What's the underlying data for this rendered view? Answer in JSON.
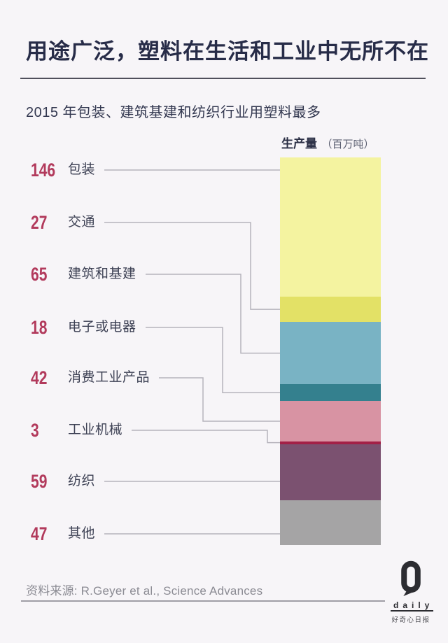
{
  "title": "用途广泛，塑料在生活和工业中无所不在",
  "subtitle": "2015 年包装、建筑基建和纺织行业用塑料最多",
  "bar_header": {
    "label": "生产量",
    "unit": "（百万吨）"
  },
  "chart_data": {
    "type": "bar",
    "stacked": true,
    "orientation": "vertical",
    "title": "2015 年包装、建筑基建和纺织行业用塑料最多",
    "value_label": "生产量",
    "unit": "百万吨",
    "categories": [
      "包装",
      "交通",
      "建筑和基建",
      "电子或电器",
      "消费工业产品",
      "工业机械",
      "纺织",
      "其他"
    ],
    "values": [
      146,
      27,
      65,
      18,
      42,
      3,
      59,
      47
    ],
    "colors": [
      "#f4f3a0",
      "#e3e166",
      "#79b3c4",
      "#34808e",
      "#d893a3",
      "#a32047",
      "#7b5170",
      "#a5a4a5"
    ],
    "value_color": "#b23a5c",
    "label_color": "#3d4154",
    "connector_color": "#b6b4bc",
    "legend_position": "left-callouts",
    "grid": false
  },
  "footer": {
    "source": "资料来源: R.Geyer et al., Science Advances",
    "logo": {
      "letter": "Q",
      "name": "daily",
      "chinese": "好奇心日报"
    }
  },
  "theme": {
    "background": "#f7f5f8",
    "title_color": "#272c48",
    "rule_color": "#50505c",
    "footer_rule_color": "#a09ea6",
    "source_color": "#8b8b93"
  }
}
